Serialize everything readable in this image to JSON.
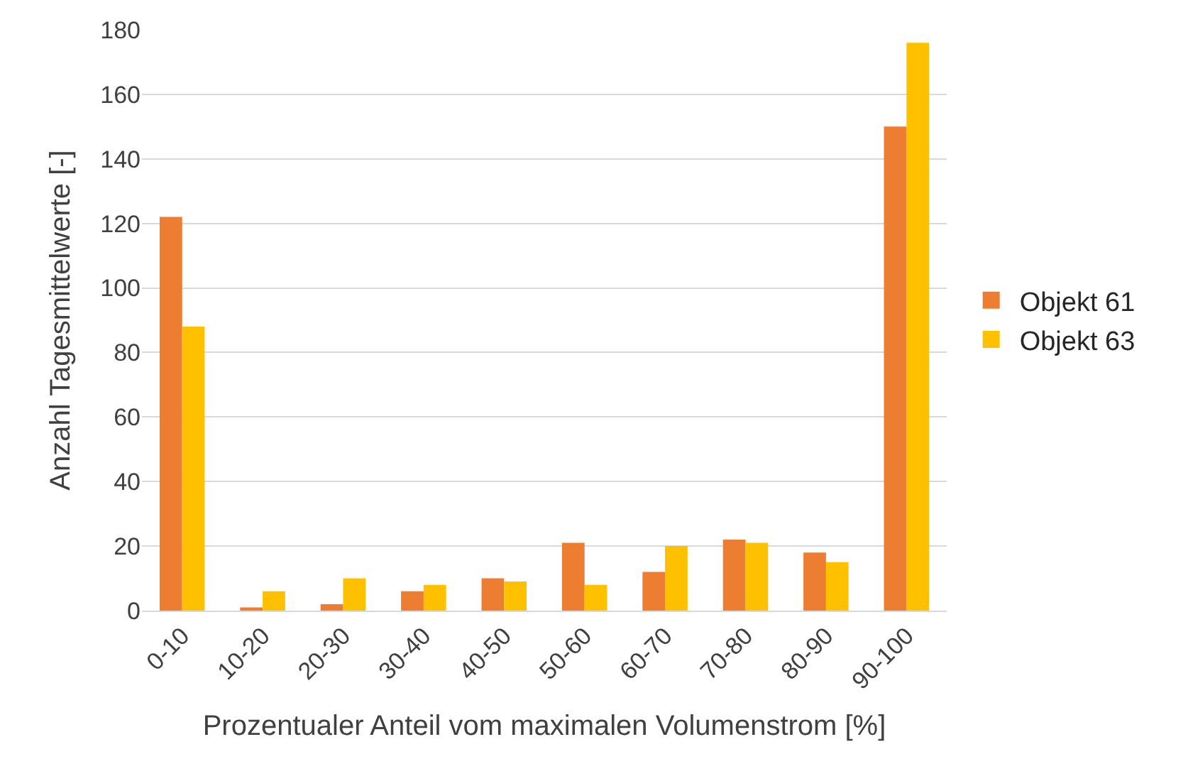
{
  "chart_data": {
    "type": "bar",
    "xlabel": "Prozentualer Anteil vom maximalen Volumenstrom [%]",
    "ylabel": "Anzahl Tagesmittelwerte [-]",
    "categories": [
      "0-10",
      "10-20",
      "20-30",
      "30-40",
      "40-50",
      "50-60",
      "60-70",
      "70-80",
      "80-90",
      "90-100"
    ],
    "series": [
      {
        "name": "Objekt 61",
        "color": "#ed7d31",
        "values": [
          122,
          1,
          2,
          6,
          10,
          21,
          12,
          22,
          18,
          150
        ]
      },
      {
        "name": "Objekt 63",
        "color": "#ffc000",
        "values": [
          88,
          6,
          10,
          8,
          9,
          8,
          20,
          21,
          15,
          176
        ]
      }
    ],
    "ylim": [
      0,
      180
    ],
    "yticks": [
      0,
      20,
      40,
      60,
      80,
      100,
      120,
      140,
      160,
      180
    ],
    "grid": "y",
    "legend": "right"
  }
}
